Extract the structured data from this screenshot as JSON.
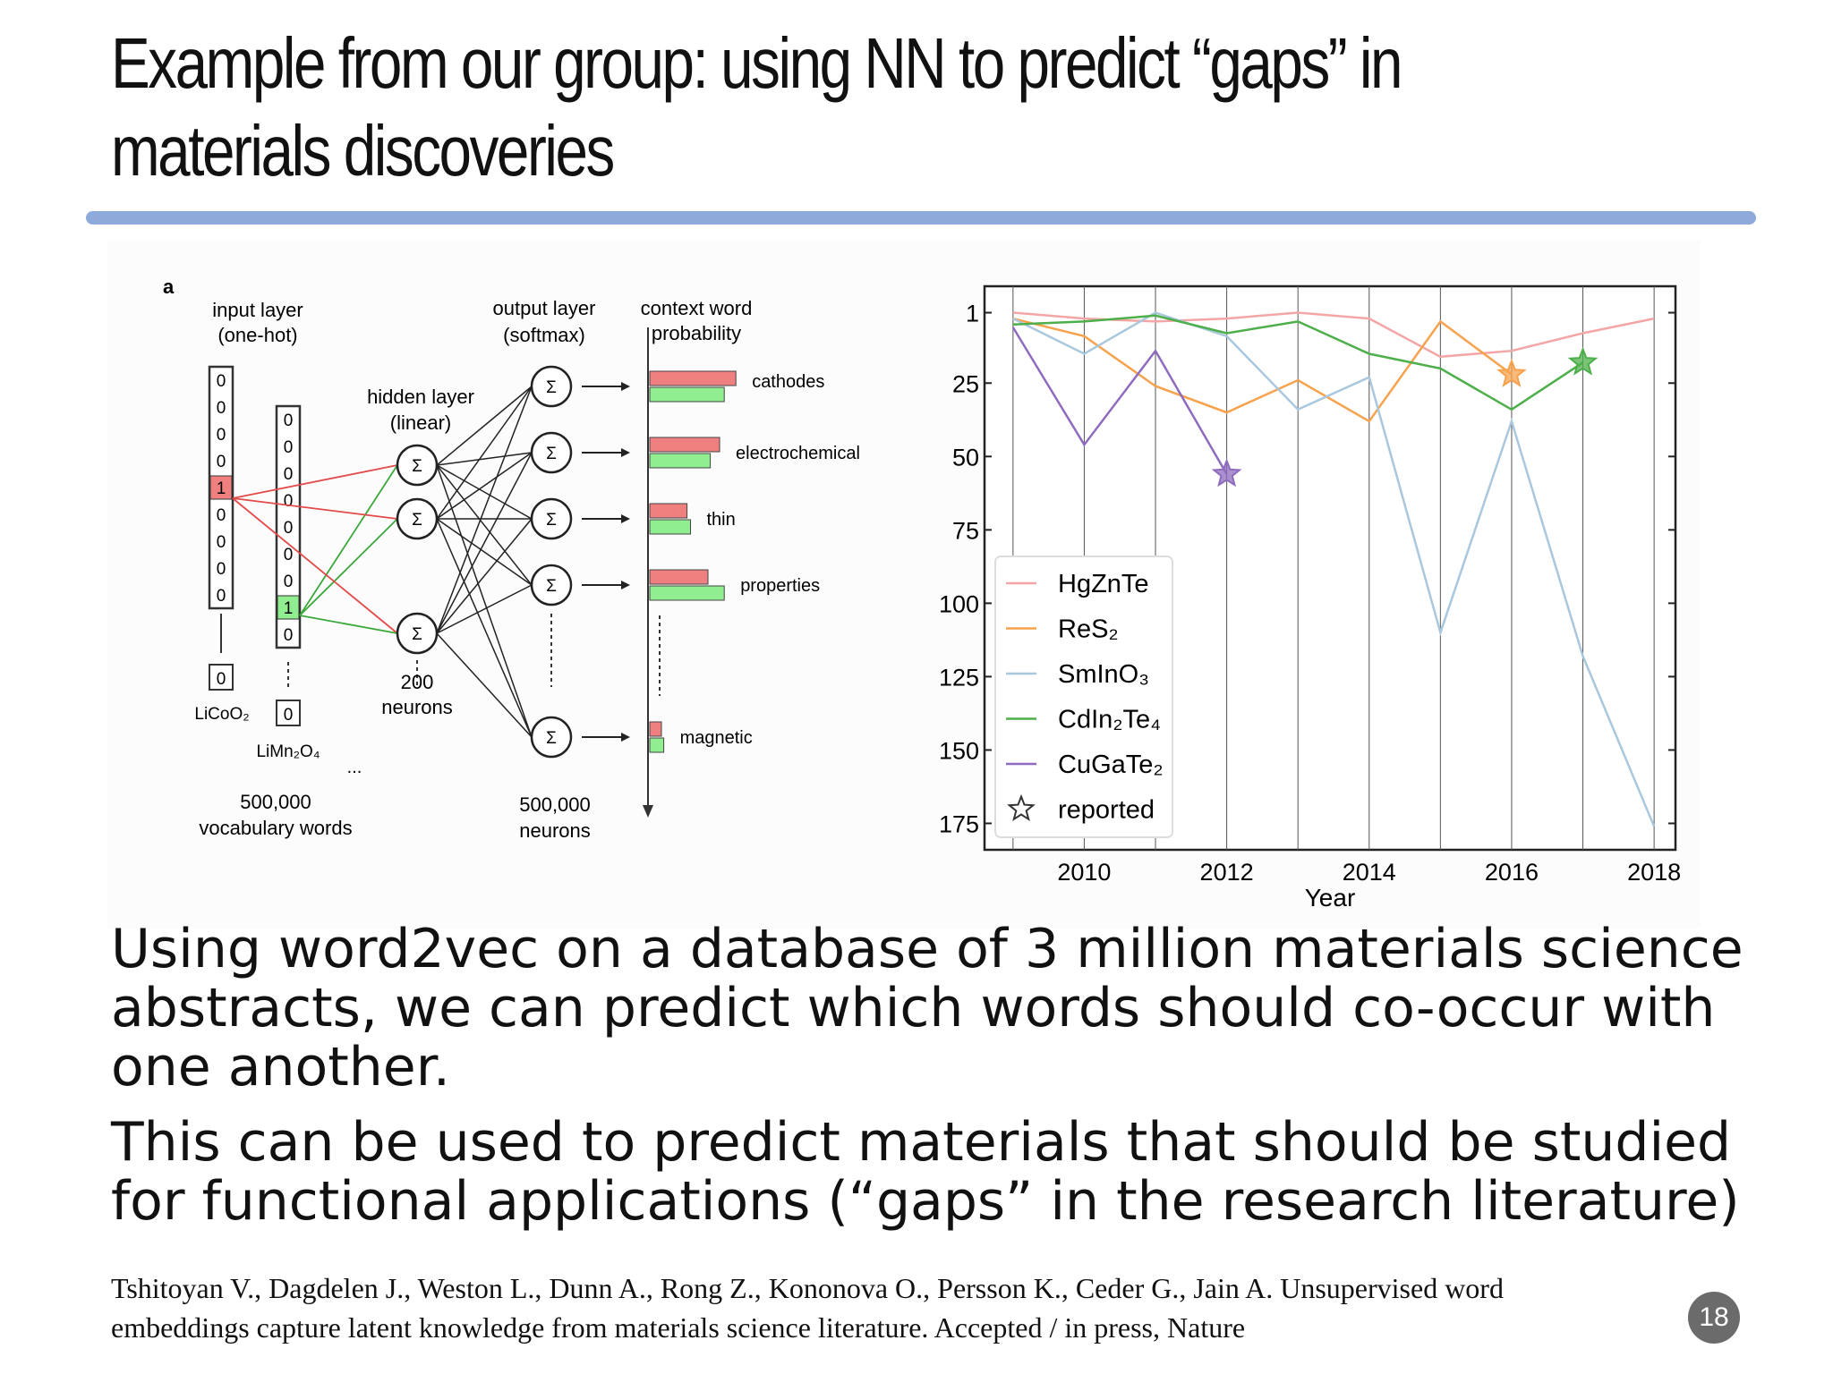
{
  "slide": {
    "title": "Example from our group: using NN to predict “gaps” in materials discoveries",
    "paragraph1": "Using word2vec on a database of 3 million materials science abstracts, we can predict which words should co-occur with one another.",
    "paragraph2": "This can be used to predict materials that should be studied for functional applications (“gaps” in the research literature)",
    "citation": "Tshitoyan V., Dagdelen J., Weston L., Dunn A., Rong Z., Kononova O., Persson K., Ceder G., Jain A. Unsupervised word embeddings capture latent knowledge from materials science literature. Accepted / in press, Nature",
    "page_number": "18"
  },
  "diagram": {
    "panel_label": "a",
    "input_layer_line1": "input layer",
    "input_layer_line2": "(one-hot)",
    "hidden_layer_line1": "hidden layer",
    "hidden_layer_line2": "(linear)",
    "output_layer_line1": "output layer",
    "output_layer_line2": "(softmax)",
    "context_line1": "context word",
    "context_line2": "probability",
    "neuron_symbol": "Σ",
    "input_vector_1": [
      "0",
      "0",
      "0",
      "0",
      "1",
      "0",
      "0",
      "0",
      "0"
    ],
    "input_vector_2": [
      "0",
      "0",
      "0",
      "0",
      "0",
      "0",
      "0",
      "1",
      "0"
    ],
    "tail_value": "0",
    "word1": "LiCoO₂",
    "word2": "LiMn₂O₄",
    "ellipsis": "...",
    "vocab_line1": "500,000",
    "vocab_line2": "vocabulary words",
    "hidden_count_line1": "200",
    "hidden_count_line2": "neurons",
    "output_count_line1": "500,000",
    "output_count_line2": "neurons",
    "context_words": [
      "cathodes",
      "electrochemical",
      "thin",
      "properties",
      "magnetic"
    ],
    "bar_values": {
      "red": [
        0.74,
        0.6,
        0.32,
        0.5,
        0.1
      ],
      "green": [
        0.64,
        0.52,
        0.35,
        0.64,
        0.12
      ]
    },
    "colors": {
      "red": "#f08080",
      "green": "#90ee90"
    }
  },
  "chart_data": {
    "type": "line",
    "xlabel": "Year",
    "ylabel": "",
    "xlim": [
      2008.6,
      2018.3
    ],
    "ylim": [
      184,
      -8
    ],
    "y_inverted": true,
    "x_ticks": [
      2010,
      2012,
      2014,
      2016,
      2018
    ],
    "y_ticks": [
      1,
      25,
      50,
      75,
      100,
      125,
      150,
      175
    ],
    "grid": "vertical lines at each year",
    "legend_position": "lower-left",
    "series": [
      {
        "name": "HgZnTe",
        "color": "#f4a6a6",
        "x": [
          2009,
          2010,
          2011,
          2012,
          2013,
          2014,
          2015,
          2016,
          2017,
          2018
        ],
        "y": [
          1,
          3,
          4,
          3,
          1,
          3,
          16,
          14,
          8,
          3
        ]
      },
      {
        "name": "ReS₂",
        "color": "#f7a24d",
        "x": [
          2009,
          2010,
          2011,
          2012,
          2013,
          2014,
          2015,
          2016
        ],
        "y": [
          3,
          9,
          26,
          35,
          24,
          38,
          4,
          22
        ]
      },
      {
        "name": "SmInO₃",
        "color": "#a9c7dd",
        "x": [
          2009,
          2010,
          2011,
          2012,
          2013,
          2014,
          2015,
          2016,
          2017,
          2018
        ],
        "y": [
          3,
          15,
          1,
          9,
          34,
          23,
          110,
          38,
          118,
          176
        ]
      },
      {
        "name": "CdIn₂Te₄",
        "color": "#4daf4a",
        "x": [
          2009,
          2010,
          2011,
          2012,
          2013,
          2014,
          2015,
          2016,
          2017
        ],
        "y": [
          5,
          4,
          2,
          8,
          4,
          15,
          20,
          34,
          18
        ]
      },
      {
        "name": "CuGaTe₂",
        "color": "#8e6bbf",
        "x": [
          2009,
          2010,
          2011,
          2012
        ],
        "y": [
          6,
          46,
          14,
          56
        ]
      }
    ],
    "reported_markers": [
      {
        "series": "CuGaTe₂",
        "x": 2012,
        "y": 56
      },
      {
        "series": "ReS₂",
        "x": 2016,
        "y": 22
      },
      {
        "series": "CdIn₂Te₄",
        "x": 2017,
        "y": 18
      }
    ],
    "legend_entries": [
      "HgZnTe",
      "ReS₂",
      "SmInO₃",
      "CdIn₂Te₄",
      "CuGaTe₂",
      "reported"
    ]
  }
}
